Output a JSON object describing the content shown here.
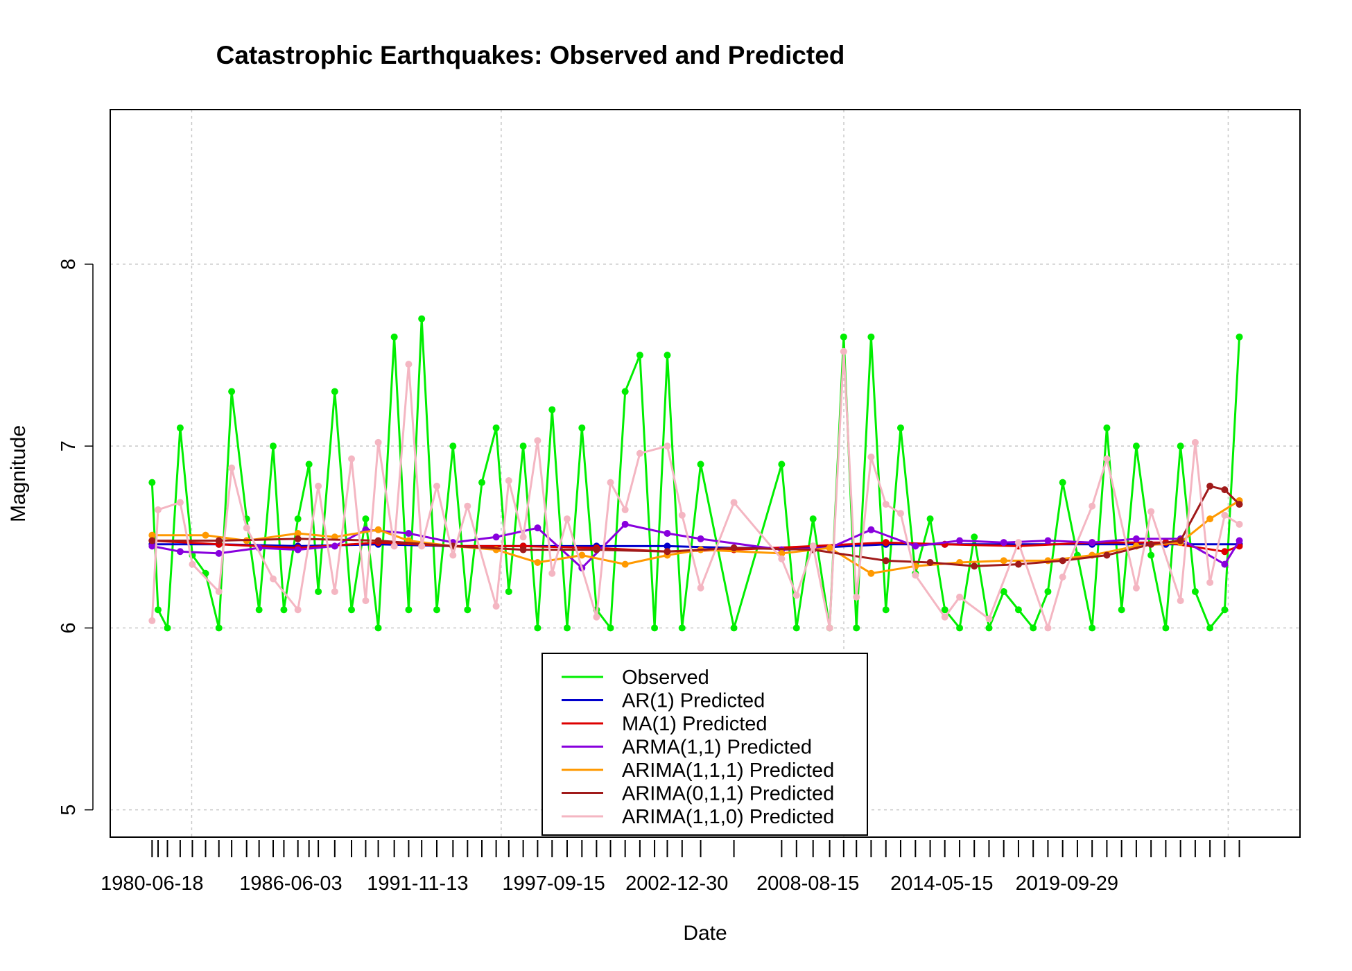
{
  "chart_data": {
    "type": "line",
    "title": "Catastrophic Earthquakes: Observed and Predicted",
    "xlabel": "Date",
    "ylabel": "Magnitude",
    "ylim": [
      4.85,
      8.85
    ],
    "xlim": [
      "1978-09-01",
      "2029-10-01"
    ],
    "grid": true,
    "legend_position": "bottom-center",
    "x_ticks": [
      "1980-06-18",
      "1986-06-03",
      "1991-11-13",
      "1997-09-15",
      "2002-12-30",
      "2008-08-15",
      "2014-05-15",
      "2019-09-29"
    ],
    "y_ticks": [
      5,
      6,
      7,
      8
    ],
    "x_vertical_grid_dates": [
      "1982-03-01",
      "1995-06-15",
      "2010-03-01",
      "2026-09-01"
    ],
    "rug_dates": [
      "1980-06-18",
      "1980-09-20",
      "1981-02-14",
      "1981-09-02",
      "1982-03-12",
      "1982-10-05",
      "1983-05-02",
      "1983-11-18",
      "1984-07-10",
      "1985-01-21",
      "1985-08-30",
      "1986-02-14",
      "1986-09-22",
      "1987-03-15",
      "1987-08-08",
      "1988-04-22",
      "1989-01-10",
      "1989-08-20",
      "1990-03-05",
      "1990-11-11",
      "1991-06-25",
      "1992-01-15",
      "1992-09-08",
      "1993-05-20",
      "1994-01-03",
      "1994-08-16",
      "1995-03-28",
      "1995-10-12",
      "1996-05-25",
      "1997-01-06",
      "1997-08-21",
      "1998-04-14",
      "1998-12-02",
      "1999-07-19",
      "2000-02-23",
      "2000-10-10",
      "2001-05-29",
      "2002-01-14",
      "2002-08-02",
      "2003-03-22",
      "2004-01-07",
      "2005-06-12",
      "2007-06-30",
      "2008-02-18",
      "2008-11-04",
      "2009-07-22",
      "2010-02-27",
      "2010-09-15",
      "2011-05-03",
      "2011-12-21",
      "2012-08-08",
      "2013-03-28",
      "2013-11-14",
      "2014-07-02",
      "2015-02-19",
      "2015-10-07",
      "2016-05-25",
      "2017-01-11",
      "2017-08-30",
      "2018-04-18",
      "2018-12-05",
      "2019-07-24",
      "2020-03-11",
      "2020-10-28",
      "2021-06-16",
      "2022-02-02",
      "2022-09-21",
      "2023-05-10",
      "2023-12-27",
      "2024-08-14",
      "2025-04-02",
      "2025-11-19",
      "2026-07-08",
      "2027-02-23"
    ],
    "series": [
      {
        "name": "Observed",
        "color": "#00ee00",
        "x": [
          "1980-06-18",
          "1980-09-20",
          "1981-02-14",
          "1981-09-02",
          "1982-03-12",
          "1982-10-05",
          "1983-05-02",
          "1983-11-18",
          "1984-07-10",
          "1985-01-21",
          "1985-08-30",
          "1986-02-14",
          "1986-09-22",
          "1987-03-15",
          "1987-08-08",
          "1988-04-22",
          "1989-01-10",
          "1989-08-20",
          "1990-03-05",
          "1990-11-11",
          "1991-06-25",
          "1992-01-15",
          "1992-09-08",
          "1993-05-20",
          "1994-01-03",
          "1994-08-16",
          "1995-03-28",
          "1995-10-12",
          "1996-05-25",
          "1997-01-06",
          "1997-08-21",
          "1998-04-14",
          "1998-12-02",
          "1999-07-19",
          "2000-02-23",
          "2000-10-10",
          "2001-05-29",
          "2002-01-14",
          "2002-08-02",
          "2003-03-22",
          "2004-01-07",
          "2005-06-12",
          "2007-06-30",
          "2008-02-18",
          "2008-11-04",
          "2009-07-22",
          "2010-02-27",
          "2010-09-15",
          "2011-05-03",
          "2011-12-21",
          "2012-08-08",
          "2013-03-28",
          "2013-11-14",
          "2014-07-02",
          "2015-02-19",
          "2015-10-07",
          "2016-05-25",
          "2017-01-11",
          "2017-08-30",
          "2018-04-18",
          "2018-12-05",
          "2019-07-24",
          "2020-03-11",
          "2020-10-28",
          "2021-06-16",
          "2022-02-02",
          "2022-09-21",
          "2023-05-10",
          "2023-12-27",
          "2024-08-14",
          "2025-04-02",
          "2025-11-19",
          "2026-07-08",
          "2027-02-23"
        ],
        "y": [
          6.8,
          6.1,
          6.0,
          7.1,
          6.4,
          6.3,
          6.0,
          7.3,
          6.6,
          6.1,
          7.0,
          6.1,
          6.6,
          6.9,
          6.2,
          7.3,
          6.1,
          6.6,
          6.0,
          7.6,
          6.1,
          7.7,
          6.1,
          7.0,
          6.1,
          6.8,
          7.1,
          6.2,
          7.0,
          6.0,
          7.2,
          6.0,
          7.1,
          6.1,
          6.0,
          7.3,
          7.5,
          6.0,
          7.5,
          6.0,
          6.9,
          6.0,
          6.9,
          6.0,
          6.6,
          6.0,
          7.6,
          6.0,
          7.6,
          6.1,
          7.1,
          6.3,
          6.6,
          6.1,
          6.0,
          6.5,
          6.0,
          6.2,
          6.1,
          6.0,
          6.2,
          6.8,
          6.4,
          6.0,
          7.1,
          6.1,
          7.0,
          6.4,
          6.0,
          7.0,
          6.2,
          6.0,
          6.1,
          7.6
        ]
      },
      {
        "name": "AR(1) Predicted",
        "color": "#0000cc",
        "x": [
          "1980-06-18",
          "1983-05-02",
          "1986-09-22",
          "1990-03-05",
          "1993-05-20",
          "1996-05-25",
          "1999-07-19",
          "2002-08-02",
          "2005-06-12",
          "2008-11-04",
          "2011-12-21",
          "2014-07-02",
          "2017-08-30",
          "2020-10-28",
          "2023-12-27",
          "2027-02-23"
        ],
        "y": [
          6.46,
          6.46,
          6.45,
          6.46,
          6.45,
          6.45,
          6.45,
          6.45,
          6.44,
          6.44,
          6.46,
          6.46,
          6.46,
          6.46,
          6.46,
          6.46
        ]
      },
      {
        "name": "MA(1) Predicted",
        "color": "#dd0000",
        "x": [
          "1980-06-18",
          "1983-05-02",
          "1986-09-22",
          "1990-03-05",
          "1993-05-20",
          "1996-05-25",
          "1999-07-19",
          "2002-08-02",
          "2005-06-12",
          "2008-11-04",
          "2011-12-21",
          "2014-07-02",
          "2017-08-30",
          "2020-10-28",
          "2023-12-27",
          "2026-07-08",
          "2027-02-23"
        ],
        "y": [
          6.48,
          6.46,
          6.44,
          6.47,
          6.45,
          6.45,
          6.44,
          6.42,
          6.43,
          6.45,
          6.47,
          6.46,
          6.45,
          6.47,
          6.47,
          6.42,
          6.45
        ]
      },
      {
        "name": "ARMA(1,1) Predicted",
        "color": "#8800dd",
        "x": [
          "1980-06-18",
          "1981-09-02",
          "1983-05-02",
          "1985-01-21",
          "1986-09-22",
          "1988-04-22",
          "1989-08-20",
          "1991-06-25",
          "1993-05-20",
          "1995-03-28",
          "1997-01-06",
          "1998-12-02",
          "2000-10-10",
          "2002-08-02",
          "2004-01-07",
          "2007-06-30",
          "2009-07-22",
          "2011-05-03",
          "2013-03-28",
          "2015-02-19",
          "2017-01-11",
          "2018-12-05",
          "2020-10-28",
          "2022-09-21",
          "2024-08-14",
          "2026-07-08",
          "2027-02-23"
        ],
        "y": [
          6.45,
          6.42,
          6.41,
          6.44,
          6.43,
          6.45,
          6.54,
          6.52,
          6.47,
          6.5,
          6.55,
          6.33,
          6.57,
          6.52,
          6.49,
          6.43,
          6.44,
          6.54,
          6.45,
          6.48,
          6.47,
          6.48,
          6.47,
          6.49,
          6.49,
          6.35,
          6.48
        ]
      },
      {
        "name": "ARIMA(1,1,1) Predicted",
        "color": "#ff9900",
        "x": [
          "1980-06-18",
          "1982-10-05",
          "1984-07-10",
          "1986-09-22",
          "1988-04-22",
          "1990-03-05",
          "1991-06-25",
          "1993-05-20",
          "1995-03-28",
          "1997-01-06",
          "1998-12-02",
          "2000-10-10",
          "2002-08-02",
          "2004-01-07",
          "2007-06-30",
          "2009-07-22",
          "2011-05-03",
          "2013-03-28",
          "2015-02-19",
          "2017-01-11",
          "2018-12-05",
          "2020-10-28",
          "2022-09-21",
          "2024-08-14",
          "2025-11-19",
          "2027-02-23"
        ],
        "y": [
          6.51,
          6.51,
          6.48,
          6.52,
          6.5,
          6.54,
          6.48,
          6.45,
          6.43,
          6.36,
          6.4,
          6.35,
          6.4,
          6.43,
          6.41,
          6.44,
          6.3,
          6.34,
          6.36,
          6.37,
          6.37,
          6.4,
          6.45,
          6.47,
          6.6,
          6.7
        ]
      },
      {
        "name": "ARIMA(0,1,1) Predicted",
        "color": "#a01a1a",
        "x": [
          "1980-06-18",
          "1983-05-02",
          "1986-09-22",
          "1990-03-05",
          "1993-05-20",
          "1996-05-25",
          "1999-07-19",
          "2002-08-02",
          "2005-06-12",
          "2008-11-04",
          "2011-12-21",
          "2013-11-14",
          "2015-10-07",
          "2017-08-30",
          "2019-07-24",
          "2021-06-16",
          "2023-05-10",
          "2024-08-14",
          "2025-11-19",
          "2026-07-08",
          "2027-02-23"
        ],
        "y": [
          6.48,
          6.48,
          6.49,
          6.48,
          6.45,
          6.43,
          6.43,
          6.42,
          6.44,
          6.43,
          6.37,
          6.36,
          6.34,
          6.35,
          6.37,
          6.4,
          6.46,
          6.48,
          6.78,
          6.76,
          6.68
        ]
      },
      {
        "name": "ARIMA(1,1,0) Predicted",
        "color": "#f4b6c2",
        "x": [
          "1980-06-18",
          "1980-09-20",
          "1981-09-02",
          "1982-03-12",
          "1983-05-02",
          "1983-11-18",
          "1984-07-10",
          "1985-08-30",
          "1986-09-22",
          "1987-08-08",
          "1988-04-22",
          "1989-01-10",
          "1989-08-20",
          "1990-03-05",
          "1990-11-11",
          "1991-06-25",
          "1992-01-15",
          "1992-09-08",
          "1993-05-20",
          "1994-01-03",
          "1995-03-28",
          "1995-10-12",
          "1996-05-25",
          "1997-01-06",
          "1997-08-21",
          "1998-04-14",
          "1999-07-19",
          "2000-02-23",
          "2000-10-10",
          "2001-05-29",
          "2002-08-02",
          "2003-03-22",
          "2004-01-07",
          "2005-06-12",
          "2007-06-30",
          "2008-02-18",
          "2008-11-04",
          "2009-07-22",
          "2010-02-27",
          "2010-09-15",
          "2011-05-03",
          "2011-12-21",
          "2012-08-08",
          "2013-03-28",
          "2014-07-02",
          "2015-02-19",
          "2016-05-25",
          "2017-08-30",
          "2018-12-05",
          "2019-07-24",
          "2020-10-28",
          "2021-06-16",
          "2022-09-21",
          "2023-05-10",
          "2024-08-14",
          "2025-04-02",
          "2025-11-19",
          "2026-07-08",
          "2027-02-23"
        ],
        "y": [
          6.04,
          6.65,
          6.69,
          6.35,
          6.2,
          6.88,
          6.55,
          6.27,
          6.1,
          6.78,
          6.2,
          6.93,
          6.15,
          7.02,
          6.45,
          7.45,
          6.45,
          6.78,
          6.4,
          6.67,
          6.12,
          6.81,
          6.5,
          7.03,
          6.3,
          6.6,
          6.06,
          6.8,
          6.65,
          6.96,
          7.0,
          6.62,
          6.22,
          6.69,
          6.38,
          6.18,
          6.45,
          6.0,
          7.52,
          6.17,
          6.94,
          6.68,
          6.63,
          6.29,
          6.06,
          6.17,
          6.05,
          6.47,
          6.0,
          6.28,
          6.67,
          6.93,
          6.22,
          6.64,
          6.15,
          7.02,
          6.25,
          6.62,
          6.57
        ]
      }
    ]
  }
}
